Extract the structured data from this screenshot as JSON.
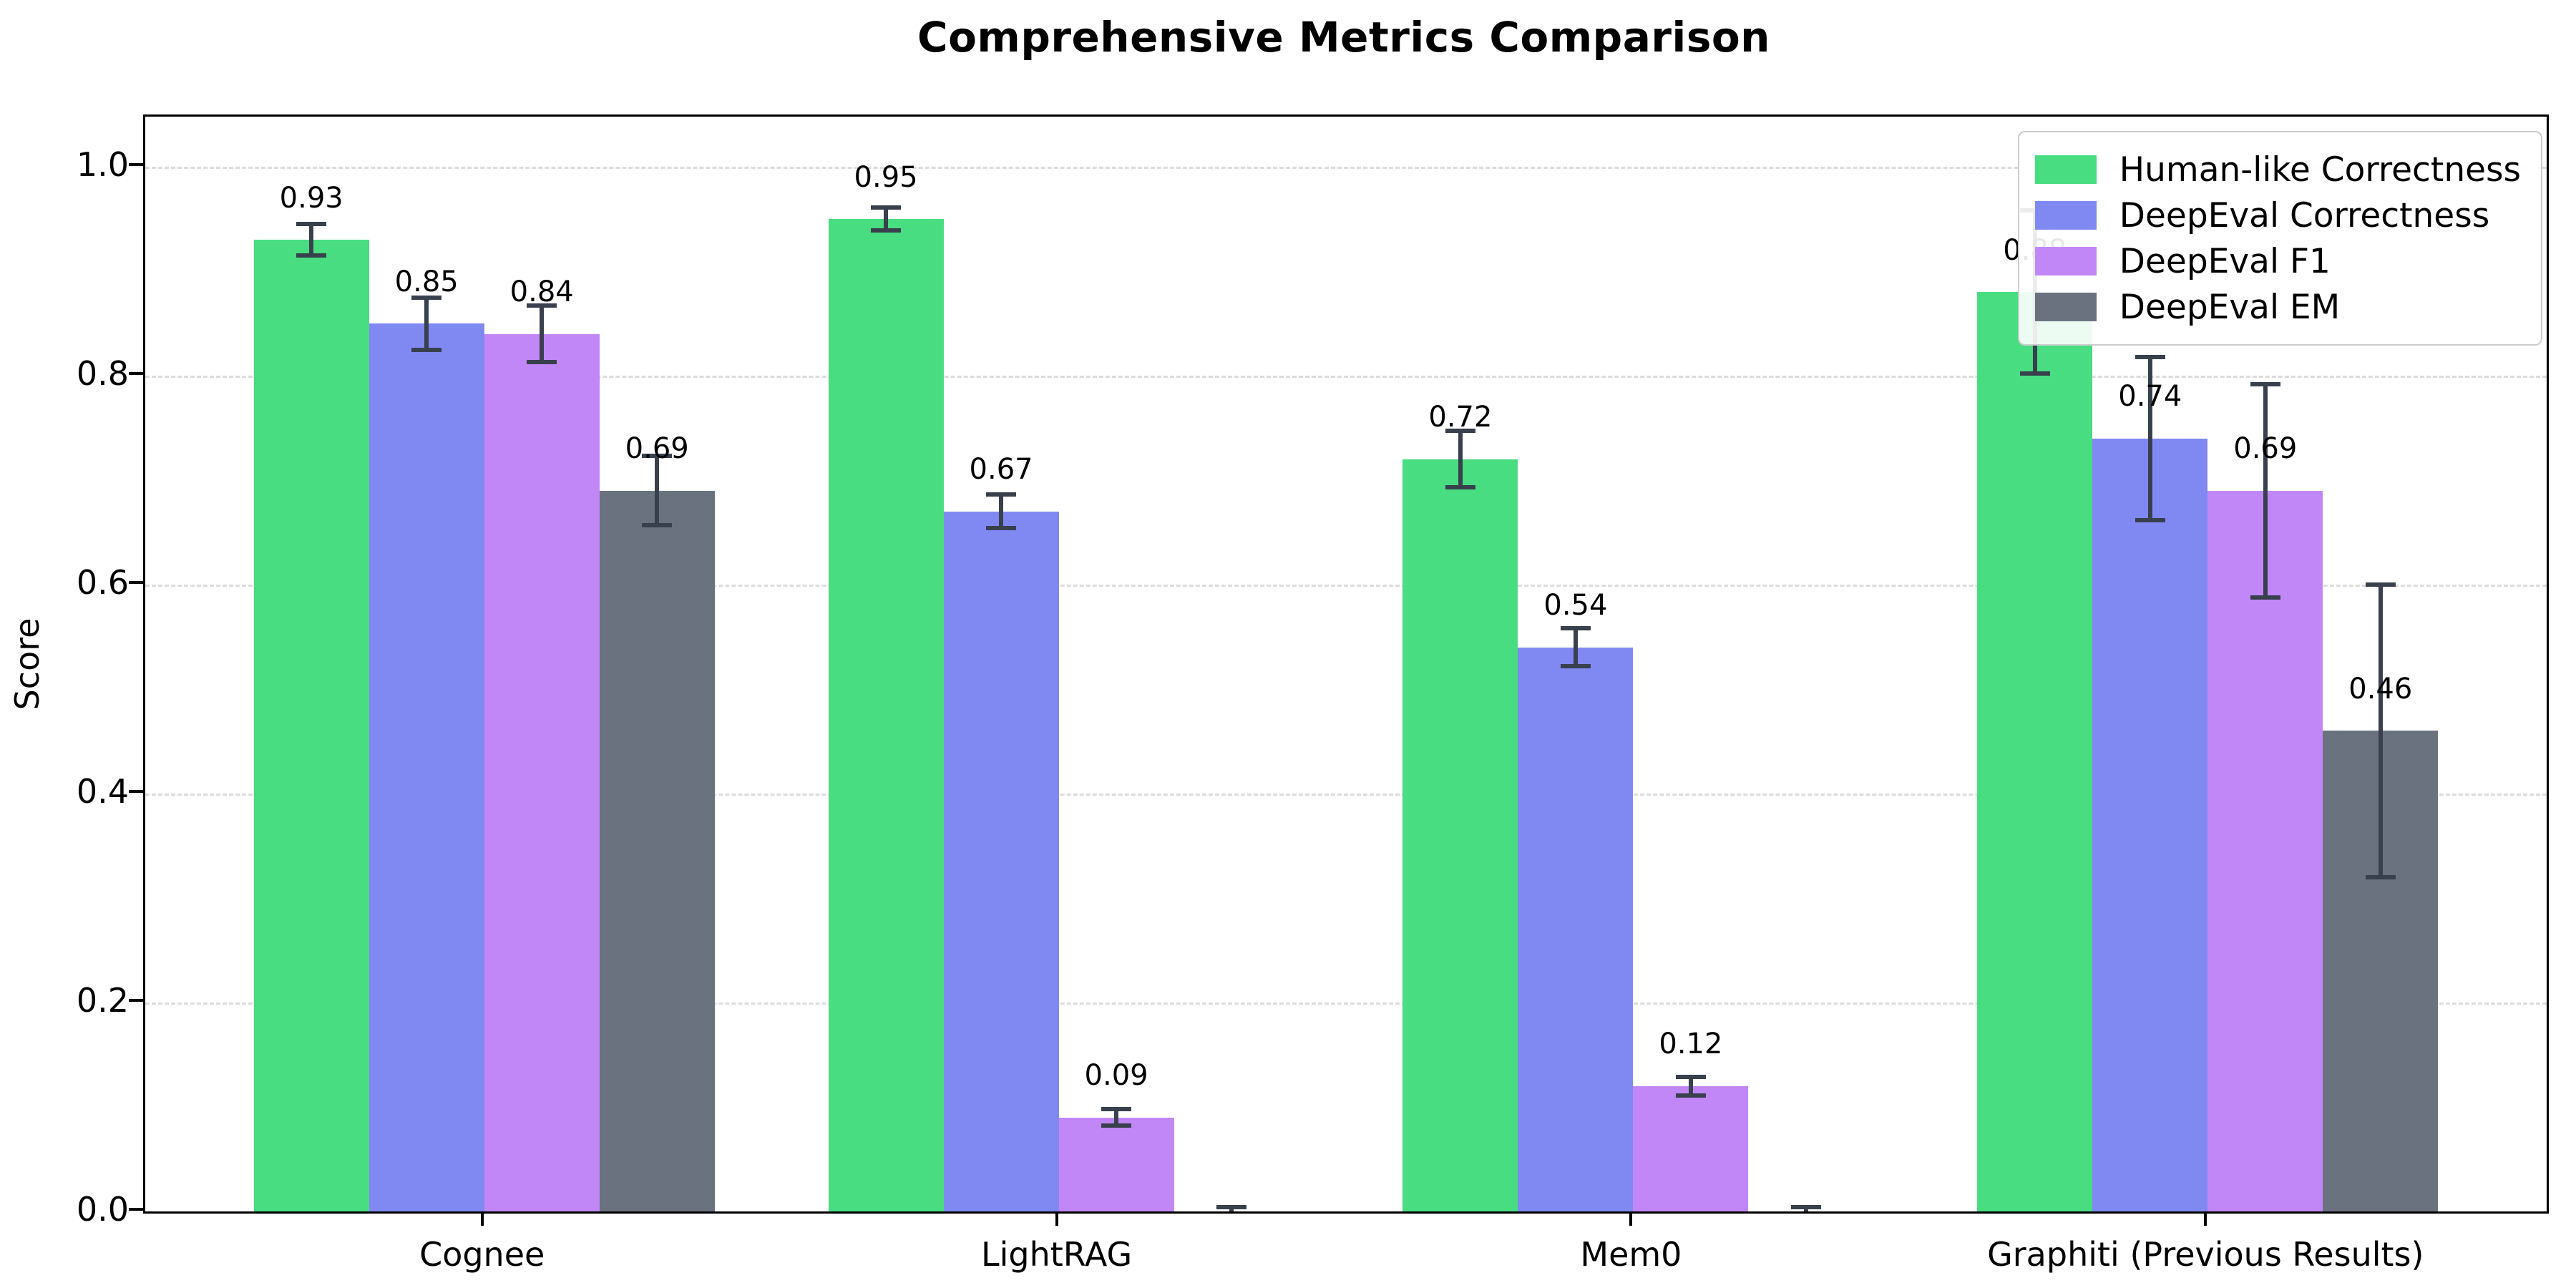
{
  "title": "Comprehensive Metrics Comparison",
  "axis": {
    "ylabel": "Score",
    "ytick_labels": [
      "0.0",
      "0.2",
      "0.4",
      "0.6",
      "0.8",
      "1.0"
    ]
  },
  "colors": {
    "human_like": "#47DD80",
    "deepeval_correctness": "#8089F2",
    "deepeval_f1": "#C287F7",
    "deepeval_em": "#6A7280",
    "error_bar": "#39404D",
    "gridline": "#DBDBDB",
    "axis_line": "#000000",
    "legend_border": "#CCCCCC"
  },
  "chart_data": {
    "type": "bar",
    "title": "Comprehensive Metrics Comparison",
    "xlabel": "",
    "ylabel": "Score",
    "categories": [
      "Cognee",
      "LightRAG",
      "Mem0",
      "Graphiti (Previous Results)"
    ],
    "series": [
      {
        "name": "Human-like Correctness",
        "color": "#47DD80",
        "values": [
          0.93,
          0.95,
          0.72,
          0.88
        ],
        "errors": [
          0.015,
          0.011,
          0.027,
          0.078
        ],
        "labels": [
          "0.93",
          "0.95",
          "0.72",
          "0.88"
        ]
      },
      {
        "name": "DeepEval Correctness",
        "color": "#8089F2",
        "values": [
          0.85,
          0.67,
          0.54,
          0.74
        ],
        "errors": [
          0.025,
          0.016,
          0.018,
          0.078
        ],
        "labels": [
          "0.85",
          "0.67",
          "0.54",
          "0.74"
        ]
      },
      {
        "name": "DeepEval F1",
        "color": "#C287F7",
        "values": [
          0.84,
          0.09,
          0.12,
          0.69
        ],
        "errors": [
          0.027,
          0.008,
          0.009,
          0.102
        ],
        "labels": [
          "0.84",
          "0.09",
          "0.12",
          "0.69"
        ]
      },
      {
        "name": "DeepEval EM",
        "color": "#6A7280",
        "values": [
          0.69,
          0.0,
          0.0,
          0.46
        ],
        "errors": [
          0.033,
          0.004,
          0.004,
          0.14
        ],
        "labels": [
          "0.69",
          "",
          "",
          "0.46"
        ]
      }
    ],
    "yticks": [
      0.0,
      0.2,
      0.4,
      0.6,
      0.8,
      1.0
    ],
    "ylim": [
      0,
      1.048
    ],
    "grid": "horizontal-dashed",
    "legend_position": "upper right"
  }
}
